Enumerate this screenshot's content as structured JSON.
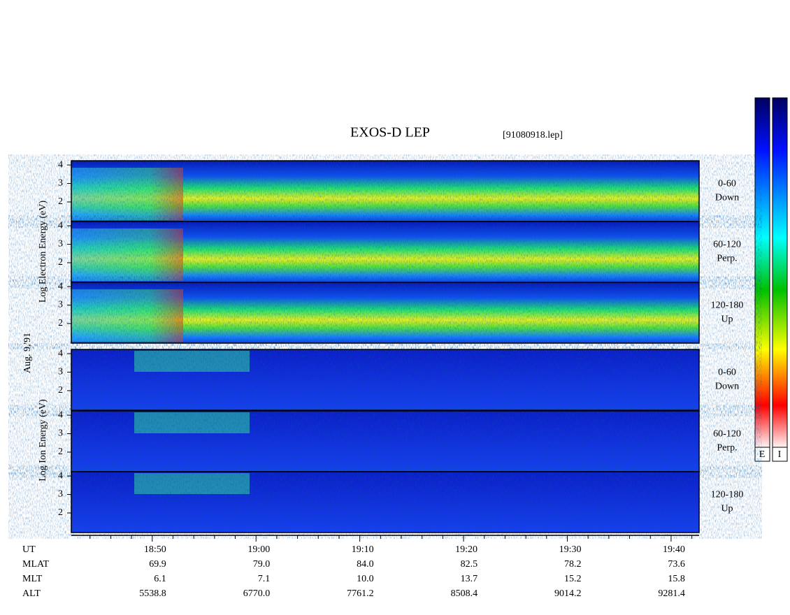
{
  "header": {
    "title": "EXOS-D LEP",
    "file": "[91080918.lep]"
  },
  "chart_data": {
    "type": "spectrogram",
    "ylabels": {
      "electron": "Log Electron Energy (eV)",
      "date": "Aug. 9,'91",
      "ion": "Log Ion Energy (eV)"
    },
    "panels": [
      {
        "group": "electron",
        "range": "0-60",
        "direction": "Down"
      },
      {
        "group": "electron",
        "range": "60-120",
        "direction": "Perp."
      },
      {
        "group": "electron",
        "range": "120-180",
        "direction": "Up"
      },
      {
        "group": "ion",
        "range": "0-60",
        "direction": "Down"
      },
      {
        "group": "ion",
        "range": "60-120",
        "direction": "Perp."
      },
      {
        "group": "ion",
        "range": "120-180",
        "direction": "Up"
      }
    ],
    "ylim": [
      0.94,
      4.23
    ],
    "yticks": [
      2,
      3,
      4
    ],
    "xlim": [
      1122.2,
      1182.7
    ],
    "xticks": [
      {
        "value": 1130,
        "label": "18:50"
      },
      {
        "value": 1140,
        "label": "19:00"
      },
      {
        "value": 1150,
        "label": "19:10"
      },
      {
        "value": 1160,
        "label": "19:20"
      },
      {
        "value": 1170,
        "label": "19:30"
      },
      {
        "value": 1180,
        "label": "19:40"
      }
    ],
    "xminorticks": [
      1124,
      1126,
      1128,
      1132,
      1134,
      1136,
      1138,
      1142,
      1144,
      1146,
      1148,
      1152,
      1154,
      1156,
      1158,
      1162,
      1164,
      1166,
      1168,
      1172,
      1174,
      1176,
      1178,
      1182
    ],
    "x_label": "UT",
    "ephemeris": [
      {
        "name": "MLAT",
        "values": [
          "69.9",
          "79.0",
          "84.0",
          "82.5",
          "78.2",
          "73.6"
        ]
      },
      {
        "name": "MLT",
        "values": [
          "6.1",
          "7.1",
          "10.0",
          "13.7",
          "15.2",
          "15.8"
        ]
      },
      {
        "name": "ALT",
        "values": [
          "5538.8",
          "6770.0",
          "7761.2",
          "8508.4",
          "9014.2",
          "9281.4"
        ]
      }
    ]
  },
  "colorbar": {
    "labels": [
      "E",
      "I"
    ]
  }
}
